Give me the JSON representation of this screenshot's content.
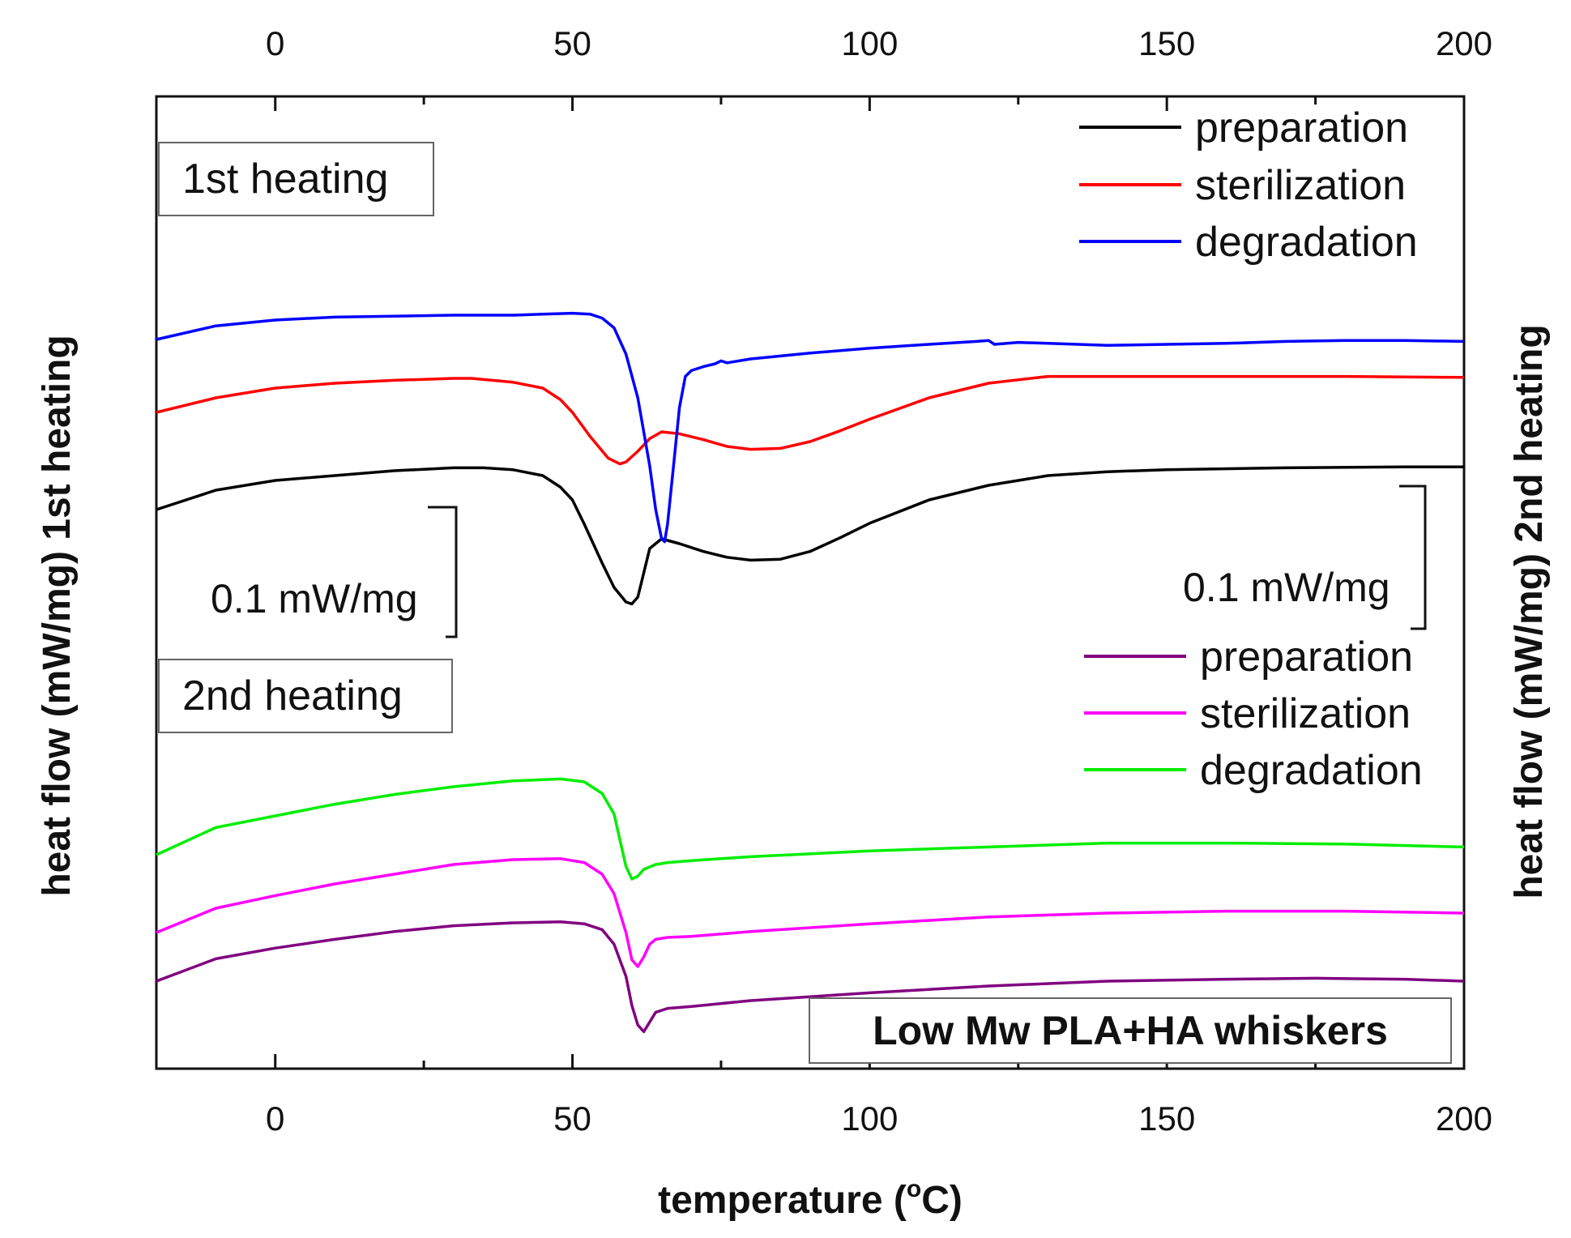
{
  "chart_data": {
    "type": "line",
    "title": "Low Mw PLA+HA whiskers",
    "xlabel": "temperature (°C)",
    "xlabel_main": "temperature (",
    "xlabel_sup": "o",
    "xlabel_unit": "C)",
    "ylabel_left": "heat flow (mW/mg) 1st heating",
    "ylabel_right": "heat flow (mW/mg) 2nd heating",
    "xlim": [
      -20,
      200
    ],
    "ylim": [
      0,
      1
    ],
    "x_ticks": [
      0,
      50,
      100,
      150,
      200
    ],
    "x_tick_labels": [
      "0",
      "50",
      "100",
      "150",
      "200"
    ],
    "grid": false,
    "panels": [
      {
        "label": "1st heating",
        "scale_bar": "0.1 mW/mg",
        "series": [
          {
            "name": "preparation",
            "color": "#000000",
            "points": [
              [
                -20,
                0.575
              ],
              [
                -10,
                0.595
              ],
              [
                0,
                0.605
              ],
              [
                10,
                0.61
              ],
              [
                20,
                0.615
              ],
              [
                30,
                0.618
              ],
              [
                35,
                0.618
              ],
              [
                40,
                0.616
              ],
              [
                45,
                0.61
              ],
              [
                48,
                0.598
              ],
              [
                50,
                0.585
              ],
              [
                52,
                0.56
              ],
              [
                55,
                0.52
              ],
              [
                57,
                0.495
              ],
              [
                59,
                0.48
              ],
              [
                60,
                0.478
              ],
              [
                61,
                0.485
              ],
              [
                62,
                0.51
              ],
              [
                63,
                0.535
              ],
              [
                65,
                0.545
              ],
              [
                68,
                0.54
              ],
              [
                72,
                0.532
              ],
              [
                76,
                0.526
              ],
              [
                80,
                0.523
              ],
              [
                85,
                0.524
              ],
              [
                90,
                0.532
              ],
              [
                95,
                0.546
              ],
              [
                100,
                0.561
              ],
              [
                110,
                0.585
              ],
              [
                120,
                0.6
              ],
              [
                130,
                0.61
              ],
              [
                140,
                0.614
              ],
              [
                150,
                0.616
              ],
              [
                170,
                0.618
              ],
              [
                190,
                0.619
              ],
              [
                200,
                0.619
              ]
            ]
          },
          {
            "name": "sterilization",
            "color": "#ff0000",
            "points": [
              [
                -20,
                0.675
              ],
              [
                -10,
                0.69
              ],
              [
                0,
                0.7
              ],
              [
                10,
                0.705
              ],
              [
                20,
                0.708
              ],
              [
                30,
                0.71
              ],
              [
                33,
                0.71
              ],
              [
                40,
                0.706
              ],
              [
                45,
                0.7
              ],
              [
                48,
                0.688
              ],
              [
                50,
                0.675
              ],
              [
                53,
                0.65
              ],
              [
                56,
                0.628
              ],
              [
                58,
                0.622
              ],
              [
                59,
                0.624
              ],
              [
                61,
                0.635
              ],
              [
                63,
                0.648
              ],
              [
                65,
                0.655
              ],
              [
                68,
                0.653
              ],
              [
                72,
                0.647
              ],
              [
                76,
                0.64
              ],
              [
                80,
                0.637
              ],
              [
                85,
                0.638
              ],
              [
                90,
                0.645
              ],
              [
                95,
                0.656
              ],
              [
                100,
                0.668
              ],
              [
                110,
                0.69
              ],
              [
                120,
                0.705
              ],
              [
                130,
                0.712
              ],
              [
                140,
                0.712
              ],
              [
                160,
                0.712
              ],
              [
                180,
                0.712
              ],
              [
                200,
                0.711
              ]
            ]
          },
          {
            "name": "degradation",
            "color": "#0000ff",
            "points": [
              [
                -20,
                0.75
              ],
              [
                -10,
                0.764
              ],
              [
                0,
                0.77
              ],
              [
                10,
                0.773
              ],
              [
                20,
                0.774
              ],
              [
                30,
                0.775
              ],
              [
                40,
                0.775
              ],
              [
                45,
                0.776
              ],
              [
                50,
                0.777
              ],
              [
                53,
                0.776
              ],
              [
                55,
                0.772
              ],
              [
                57,
                0.762
              ],
              [
                59,
                0.735
              ],
              [
                61,
                0.69
              ],
              [
                63,
                0.62
              ],
              [
                64,
                0.575
              ],
              [
                65,
                0.545
              ],
              [
                65.5,
                0.542
              ],
              [
                66,
                0.56
              ],
              [
                67,
                0.62
              ],
              [
                68,
                0.68
              ],
              [
                69,
                0.712
              ],
              [
                70,
                0.718
              ],
              [
                72,
                0.722
              ],
              [
                74,
                0.725
              ],
              [
                75,
                0.728
              ],
              [
                76,
                0.726
              ],
              [
                80,
                0.73
              ],
              [
                90,
                0.736
              ],
              [
                100,
                0.741
              ],
              [
                110,
                0.745
              ],
              [
                118,
                0.748
              ],
              [
                120,
                0.749
              ],
              [
                121,
                0.745
              ],
              [
                125,
                0.747
              ],
              [
                130,
                0.746
              ],
              [
                140,
                0.744
              ],
              [
                150,
                0.745
              ],
              [
                160,
                0.746
              ],
              [
                170,
                0.748
              ],
              [
                180,
                0.749
              ],
              [
                190,
                0.749
              ],
              [
                200,
                0.748
              ]
            ]
          }
        ]
      },
      {
        "label": "2nd heating",
        "scale_bar": "0.1 mW/mg",
        "series": [
          {
            "name": "preparation",
            "color": "#800080",
            "points": [
              [
                -20,
                0.09
              ],
              [
                -10,
                0.113
              ],
              [
                0,
                0.124
              ],
              [
                10,
                0.133
              ],
              [
                20,
                0.141
              ],
              [
                30,
                0.147
              ],
              [
                40,
                0.15
              ],
              [
                48,
                0.151
              ],
              [
                52,
                0.149
              ],
              [
                55,
                0.143
              ],
              [
                57,
                0.128
              ],
              [
                59,
                0.095
              ],
              [
                60,
                0.065
              ],
              [
                61,
                0.045
              ],
              [
                62,
                0.038
              ],
              [
                63,
                0.048
              ],
              [
                64,
                0.058
              ],
              [
                66,
                0.062
              ],
              [
                70,
                0.064
              ],
              [
                80,
                0.07
              ],
              [
                100,
                0.078
              ],
              [
                120,
                0.085
              ],
              [
                140,
                0.09
              ],
              [
                160,
                0.092
              ],
              [
                175,
                0.093
              ],
              [
                190,
                0.092
              ],
              [
                200,
                0.09
              ]
            ]
          },
          {
            "name": "sterilization",
            "color": "#ff00ff",
            "points": [
              [
                -20,
                0.14
              ],
              [
                -10,
                0.165
              ],
              [
                0,
                0.178
              ],
              [
                10,
                0.19
              ],
              [
                20,
                0.2
              ],
              [
                30,
                0.21
              ],
              [
                40,
                0.215
              ],
              [
                48,
                0.216
              ],
              [
                52,
                0.212
              ],
              [
                55,
                0.2
              ],
              [
                57,
                0.18
              ],
              [
                59,
                0.14
              ],
              [
                60,
                0.112
              ],
              [
                61,
                0.105
              ],
              [
                62,
                0.115
              ],
              [
                63,
                0.128
              ],
              [
                64,
                0.133
              ],
              [
                66,
                0.135
              ],
              [
                70,
                0.136
              ],
              [
                80,
                0.141
              ],
              [
                100,
                0.149
              ],
              [
                120,
                0.156
              ],
              [
                140,
                0.16
              ],
              [
                160,
                0.162
              ],
              [
                180,
                0.162
              ],
              [
                200,
                0.16
              ]
            ]
          },
          {
            "name": "degradation",
            "color": "#00ee00",
            "points": [
              [
                -20,
                0.22
              ],
              [
                -10,
                0.248
              ],
              [
                0,
                0.26
              ],
              [
                10,
                0.272
              ],
              [
                20,
                0.282
              ],
              [
                30,
                0.29
              ],
              [
                40,
                0.296
              ],
              [
                48,
                0.298
              ],
              [
                52,
                0.295
              ],
              [
                55,
                0.283
              ],
              [
                57,
                0.262
              ],
              [
                58,
                0.235
              ],
              [
                59,
                0.208
              ],
              [
                60,
                0.195
              ],
              [
                61,
                0.198
              ],
              [
                62,
                0.205
              ],
              [
                64,
                0.21
              ],
              [
                66,
                0.212
              ],
              [
                70,
                0.214
              ],
              [
                80,
                0.218
              ],
              [
                100,
                0.224
              ],
              [
                120,
                0.228
              ],
              [
                140,
                0.232
              ],
              [
                150,
                0.232
              ],
              [
                160,
                0.232
              ],
              [
                180,
                0.231
              ],
              [
                200,
                0.228
              ]
            ]
          }
        ]
      }
    ]
  }
}
